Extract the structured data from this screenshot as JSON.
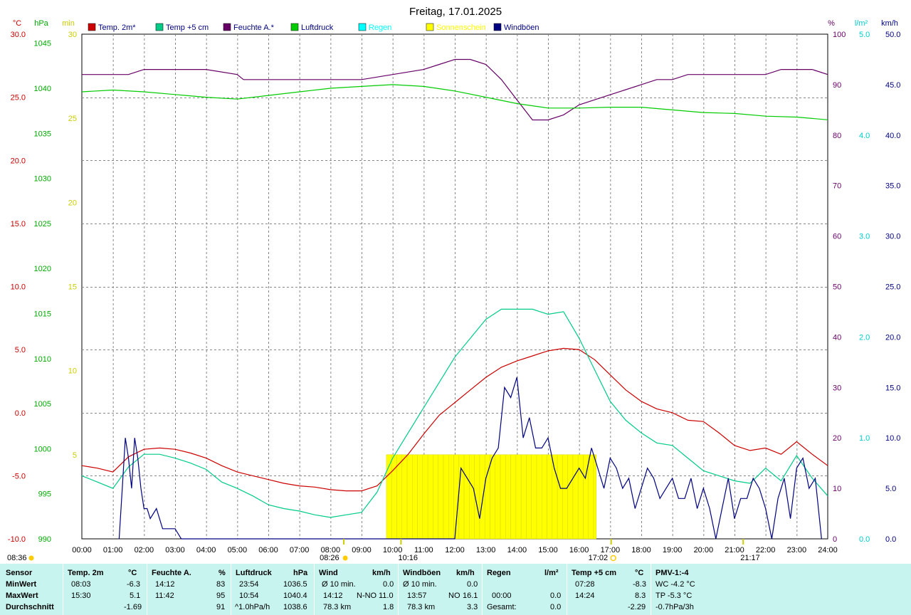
{
  "title": "Freitag, 17.01.2025",
  "colors": {
    "temp2m": "#cc0000",
    "temp5cm": "#00cc88",
    "feuchte": "#660066",
    "luftdruck": "#00cc00",
    "regen": "#00cccc",
    "sonne": "#ffff00",
    "wind": "#000080",
    "table_bg": "#c8f4f0"
  },
  "axes_labels": {
    "left1": "°C",
    "left2": "hPa",
    "left3": "min",
    "right1": "%",
    "right2": "l/m²",
    "right3": "km/h"
  },
  "legend": [
    {
      "label": "Temp. 2m*",
      "color": "#cc0000"
    },
    {
      "label": "Temp +5 cm",
      "color": "#00cc88"
    },
    {
      "label": "Feuchte A.*",
      "color": "#660066"
    },
    {
      "label": "Luftdruck",
      "color": "#00cc00"
    },
    {
      "label": "Regen",
      "color": "#00ffff"
    },
    {
      "label": "Sonnenschein",
      "color": "#ffff00"
    },
    {
      "label": "Windböen",
      "color": "#000080"
    }
  ],
  "markers": {
    "sunrise_left": "08:36",
    "sunrise": "08:26",
    "moonset": "10:16",
    "sunset": "17:02",
    "moonrise": "21:17"
  },
  "chart_data": {
    "type": "line",
    "x_ticks": [
      "00:00",
      "01:00",
      "02:00",
      "03:00",
      "04:00",
      "05:00",
      "06:00",
      "07:00",
      "08:00",
      "09:00",
      "10:00",
      "11:00",
      "12:00",
      "13:00",
      "14:00",
      "15:00",
      "16:00",
      "17:00",
      "18:00",
      "19:00",
      "20:00",
      "21:00",
      "22:00",
      "23:00",
      "24:00"
    ],
    "temp_axis": {
      "ticks": [
        "30.0",
        "25.0",
        "20.0",
        "15.0",
        "10.0",
        "5.0",
        "0.0",
        "-5.0",
        "-10.0"
      ],
      "range": [
        -10,
        30
      ]
    },
    "pressure_axis": {
      "ticks": [
        "1045",
        "1040",
        "1035",
        "1030",
        "1025",
        "1020",
        "1015",
        "1010",
        "1005",
        "1000",
        "995",
        "990"
      ],
      "range": [
        990,
        1046
      ]
    },
    "sun_min_axis": {
      "ticks": [
        "30",
        "25",
        "20",
        "15",
        "10",
        "5"
      ],
      "range": [
        0,
        30
      ]
    },
    "humidity_axis": {
      "ticks": [
        "100",
        "90",
        "80",
        "70",
        "60",
        "50",
        "40",
        "30",
        "20",
        "10",
        "0"
      ],
      "range": [
        0,
        100
      ]
    },
    "rain_axis": {
      "ticks": [
        "5.0",
        "4.0",
        "3.0",
        "2.0",
        "1.0",
        "0.0"
      ],
      "range": [
        0,
        5
      ]
    },
    "wind_axis": {
      "ticks": [
        "50.0",
        "45.0",
        "40.0",
        "35.0",
        "30.0",
        "25.0",
        "20.0",
        "15.0",
        "10.0",
        "5.0",
        "0.0"
      ],
      "range": [
        0,
        50
      ]
    },
    "series": [
      {
        "name": "Temp. 2m*",
        "unit": "°C",
        "x": [
          0,
          0.5,
          1,
          1.5,
          2,
          2.5,
          3,
          3.5,
          4,
          4.5,
          5,
          5.5,
          6,
          6.5,
          7,
          7.5,
          8,
          8.5,
          9,
          9.5,
          10,
          10.5,
          11,
          11.5,
          12,
          12.5,
          13,
          13.5,
          14,
          14.5,
          15,
          15.5,
          16,
          16.5,
          17,
          17.5,
          18,
          18.5,
          19,
          19.5,
          20,
          20.5,
          21,
          21.5,
          22,
          22.5,
          23,
          23.5,
          24
        ],
        "values": [
          -4.2,
          -4.4,
          -4.7,
          -3.5,
          -2.9,
          -2.8,
          -2.9,
          -3.2,
          -3.6,
          -4.2,
          -4.7,
          -5.0,
          -5.3,
          -5.6,
          -5.8,
          -5.9,
          -6.1,
          -6.2,
          -6.2,
          -5.8,
          -4.6,
          -3.3,
          -1.7,
          -0.2,
          0.8,
          1.8,
          2.8,
          3.6,
          4.1,
          4.5,
          4.9,
          5.1,
          5.0,
          4.2,
          3.0,
          1.8,
          0.9,
          0.3,
          0.0,
          -0.6,
          -0.7,
          -1.6,
          -2.6,
          -3.0,
          -2.8,
          -3.3,
          -2.3,
          -3.3,
          -4.2
        ]
      },
      {
        "name": "Temp +5 cm",
        "unit": "°C",
        "x": [
          0,
          0.5,
          1,
          1.5,
          2,
          2.5,
          3,
          3.5,
          4,
          4.5,
          5,
          5.5,
          6,
          6.5,
          7,
          7.5,
          8,
          8.5,
          9,
          9.5,
          10,
          10.5,
          11,
          11.5,
          12,
          12.5,
          13,
          13.5,
          14,
          14.5,
          15,
          15.5,
          16,
          16.5,
          17,
          17.5,
          18,
          18.5,
          19,
          19.5,
          20,
          20.5,
          21,
          21.5,
          22,
          22.5,
          23,
          23.5,
          24
        ],
        "values": [
          -5.0,
          -5.5,
          -6.0,
          -4.3,
          -3.3,
          -3.3,
          -3.6,
          -4.0,
          -4.5,
          -5.5,
          -6.0,
          -6.6,
          -7.3,
          -7.6,
          -7.8,
          -8.1,
          -8.3,
          -8.1,
          -7.9,
          -6.3,
          -3.6,
          -1.6,
          0.4,
          2.4,
          4.4,
          5.9,
          7.4,
          8.2,
          8.2,
          8.2,
          7.8,
          8.0,
          5.9,
          3.4,
          0.9,
          -0.6,
          -1.6,
          -2.4,
          -2.6,
          -3.6,
          -4.6,
          -5.0,
          -5.4,
          -5.6,
          -4.4,
          -5.4,
          -3.4,
          -5.2,
          -6.6
        ]
      },
      {
        "name": "Feuchte A.*",
        "unit": "%",
        "x": [
          0,
          1,
          1.5,
          2,
          3,
          4,
          5,
          5.2,
          5.5,
          6,
          7,
          8,
          9,
          10,
          11,
          11.5,
          12,
          12.5,
          13,
          13.5,
          14,
          14.5,
          15,
          15.5,
          16,
          16.5,
          17,
          17.5,
          18,
          18.5,
          19,
          19.5,
          20,
          20.5,
          21,
          21.5,
          22,
          22.5,
          23,
          23.5,
          24
        ],
        "values": [
          92,
          92,
          92,
          93,
          93,
          93,
          92,
          91,
          91,
          91,
          91,
          91,
          91,
          92,
          93,
          94,
          95,
          95,
          94,
          91,
          87,
          83,
          83,
          84,
          86,
          87,
          88,
          89,
          90,
          91,
          91,
          92,
          92,
          92,
          92,
          92,
          92,
          93,
          93,
          93,
          92
        ]
      },
      {
        "name": "Luftdruck",
        "unit": "hPa",
        "x": [
          0,
          1,
          2,
          3,
          4,
          5,
          6,
          7,
          8,
          9,
          10,
          11,
          12,
          13,
          14,
          15,
          16,
          17,
          18,
          19,
          20,
          21,
          22,
          23,
          24
        ],
        "values": [
          1039.6,
          1039.8,
          1039.6,
          1039.3,
          1039.0,
          1038.8,
          1039.2,
          1039.6,
          1040.0,
          1040.2,
          1040.4,
          1040.2,
          1039.7,
          1039.0,
          1038.3,
          1037.8,
          1037.8,
          1037.9,
          1037.9,
          1037.6,
          1037.3,
          1037.2,
          1036.9,
          1036.8,
          1036.5
        ]
      },
      {
        "name": "Windböen",
        "unit": "km/h",
        "x": [
          1.2,
          1.3,
          1.4,
          1.5,
          1.6,
          1.7,
          1.8,
          1.9,
          2.0,
          2.1,
          2.2,
          2.4,
          2.6,
          2.8,
          3.0,
          3.2,
          3.4,
          3.6,
          3.8,
          4.0,
          4.2,
          4.4,
          4.6,
          4.8,
          5.0,
          5.5,
          6,
          6.5,
          7,
          7.5,
          8,
          8.5,
          9,
          9.5,
          10,
          10.5,
          11,
          11.5,
          12,
          12.2,
          12.4,
          12.6,
          12.8,
          13,
          13.2,
          13.4,
          13.6,
          13.8,
          14.0,
          14.2,
          14.4,
          14.6,
          14.8,
          15.0,
          15.2,
          15.4,
          15.6,
          15.8,
          16.0,
          16.2,
          16.4,
          16.6,
          16.8,
          17.0,
          17.2,
          17.4,
          17.6,
          17.8,
          18.0,
          18.2,
          18.4,
          18.6,
          18.8,
          19.0,
          19.2,
          19.4,
          19.6,
          19.8,
          20.0,
          20.2,
          20.4,
          20.6,
          20.8,
          21.0,
          21.2,
          21.4,
          21.6,
          21.8,
          22.0,
          22.2,
          22.4,
          22.6,
          22.8,
          23.0,
          23.2,
          23.4,
          23.6,
          23.8
        ],
        "values": [
          0,
          5,
          10,
          8,
          5,
          10,
          8,
          5,
          3,
          3,
          2,
          3,
          1,
          1,
          1,
          0,
          0,
          0,
          0,
          0,
          0,
          0,
          0,
          0,
          0,
          0,
          0,
          0,
          0,
          0,
          0,
          0,
          0,
          0,
          0,
          0,
          0,
          0,
          0,
          7,
          6,
          5,
          2,
          6,
          8,
          9,
          15,
          14,
          16,
          10,
          12,
          9,
          9,
          10,
          7,
          5,
          5,
          6,
          7,
          6,
          9,
          7,
          5,
          8,
          7,
          5,
          6,
          3,
          5,
          7,
          6,
          4,
          5,
          6,
          4,
          4,
          6,
          3,
          5,
          3,
          0,
          3,
          6,
          2,
          4,
          4,
          6,
          5,
          3,
          0,
          4,
          6,
          2,
          7,
          8,
          5,
          6,
          0
        ]
      }
    ],
    "sunshine": {
      "start": 9.8,
      "end": 16.55,
      "level_min": 5
    }
  },
  "table": {
    "headers": [
      "Sensor",
      "Temp. 2m",
      "°C",
      "Feuchte A.",
      "%",
      "Luftdruck",
      "hPa",
      "Wind",
      "km/h",
      "Windböen",
      "km/h",
      "Regen",
      "l/m²",
      "Temp +5 cm",
      "°C",
      "PMV-1:-4"
    ],
    "rows": {
      "min_label": "MinWert",
      "max_label": "MaxWert",
      "avg_label": "Durchschnitt",
      "temp_min_time": "08:03",
      "temp_min": "-6.3",
      "temp_max_time": "15:30",
      "temp_max": "5.1",
      "temp_avg": "-1.69",
      "hum_min_time": "14:12",
      "hum_min": "83",
      "hum_max_time": "11:42",
      "hum_max": "95",
      "hum_avg": "91",
      "press_min_time": "23:54",
      "press_min": "1036.5",
      "press_max_time": "10:54",
      "press_max": "1040.4",
      "press_trend": "^1.0hPa/h",
      "press_avg": "1038.6",
      "wind_label1": "Ø 10 min.",
      "wind_val1": "0.0",
      "wind_time": "14:12",
      "wind_dir": "N-NO",
      "wind_max": "11.0",
      "wind_km": "78.3 km",
      "wind_avg": "1.8",
      "gust_label1": "Ø 10 min.",
      "gust_val1": "0.0",
      "gust_time": "13:57",
      "gust_dir": "NO",
      "gust_max": "16.1",
      "gust_km": "78.3 km",
      "gust_avg": "3.3",
      "rain_time": "00:00",
      "rain_max": "0.0",
      "rain_total_label": "Gesamt:",
      "rain_total": "0.0",
      "t5_min_time": "07:28",
      "t5_min": "-8.3",
      "t5_max_time": "14:24",
      "t5_max": "8.3",
      "t5_avg": "-2.29",
      "pmv_wc": "WC -4.2 °C",
      "pmv_tp": "TP -5.3 °C",
      "pmv_trend": "-0.7hPa/3h"
    }
  }
}
